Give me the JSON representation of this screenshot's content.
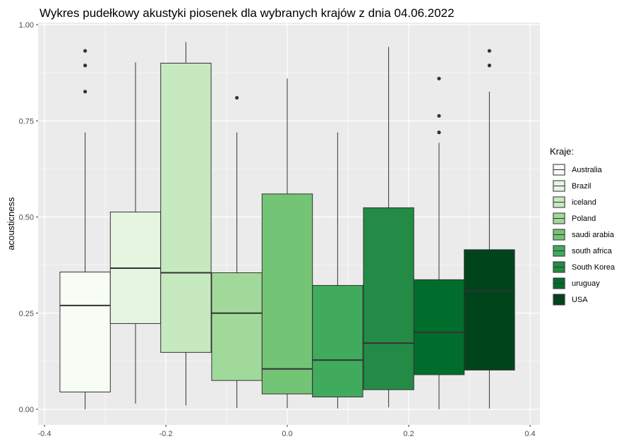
{
  "chart_data": {
    "type": "box",
    "title": "Wykres pudełkowy akustyki piosenek dla wybranych krajów z dnia 04.06.2022",
    "xlabel": "",
    "ylabel": "acousticness",
    "xlim": [
      -0.4,
      0.4
    ],
    "ylim": [
      0.0,
      1.0
    ],
    "x_ticks": [
      -0.4,
      -0.2,
      0.0,
      0.2,
      0.4
    ],
    "x_tick_labels": [
      "-0.4",
      "-0.2",
      "0.0",
      "0.2",
      "0.4"
    ],
    "y_ticks": [
      0.0,
      0.25,
      0.5,
      0.75,
      1.0
    ],
    "y_tick_labels": [
      "0.00",
      "0.25",
      "0.50",
      "0.75",
      "1.00"
    ],
    "grid": true,
    "legend": {
      "title": "Kraje:",
      "position": "right"
    },
    "series": [
      {
        "name": "Australia",
        "color": "#f7fcf5",
        "x_center": -0.333,
        "q1": 0.045,
        "median": 0.27,
        "q3": 0.357,
        "whisker_low": 0.0,
        "whisker_high": 0.72,
        "outliers": [
          0.826,
          0.894,
          0.932
        ]
      },
      {
        "name": "Brazil",
        "color": "#e5f5e0",
        "x_center": -0.25,
        "q1": 0.223,
        "median": 0.367,
        "q3": 0.513,
        "whisker_low": 0.015,
        "whisker_high": 0.902,
        "outliers": []
      },
      {
        "name": "iceland",
        "color": "#c7e9c0",
        "x_center": -0.167,
        "q1": 0.148,
        "median": 0.355,
        "q3": 0.9,
        "whisker_low": 0.01,
        "whisker_high": 0.955,
        "outliers": []
      },
      {
        "name": "Poland",
        "color": "#a1d99b",
        "x_center": -0.083,
        "q1": 0.075,
        "median": 0.25,
        "q3": 0.355,
        "whisker_low": 0.003,
        "whisker_high": 0.72,
        "outliers": [
          0.81
        ]
      },
      {
        "name": "saudi arabia",
        "color": "#74c476",
        "x_center": 0.0,
        "q1": 0.04,
        "median": 0.105,
        "q3": 0.56,
        "whisker_low": 0.003,
        "whisker_high": 0.86,
        "outliers": []
      },
      {
        "name": "south africa",
        "color": "#41ab5d",
        "x_center": 0.083,
        "q1": 0.032,
        "median": 0.128,
        "q3": 0.322,
        "whisker_low": 0.002,
        "whisker_high": 0.72,
        "outliers": []
      },
      {
        "name": "South Korea",
        "color": "#238b45",
        "x_center": 0.167,
        "q1": 0.051,
        "median": 0.172,
        "q3": 0.524,
        "whisker_low": 0.005,
        "whisker_high": 0.942,
        "outliers": []
      },
      {
        "name": "uruguay",
        "color": "#006d2c",
        "x_center": 0.25,
        "q1": 0.09,
        "median": 0.2,
        "q3": 0.337,
        "whisker_low": 0.0,
        "whisker_high": 0.693,
        "outliers": [
          0.72,
          0.763,
          0.86
        ]
      },
      {
        "name": "USA",
        "color": "#00441b",
        "x_center": 0.333,
        "q1": 0.102,
        "median": 0.308,
        "q3": 0.415,
        "whisker_low": 0.002,
        "whisker_high": 0.826,
        "outliers": [
          0.894,
          0.932
        ]
      }
    ]
  }
}
